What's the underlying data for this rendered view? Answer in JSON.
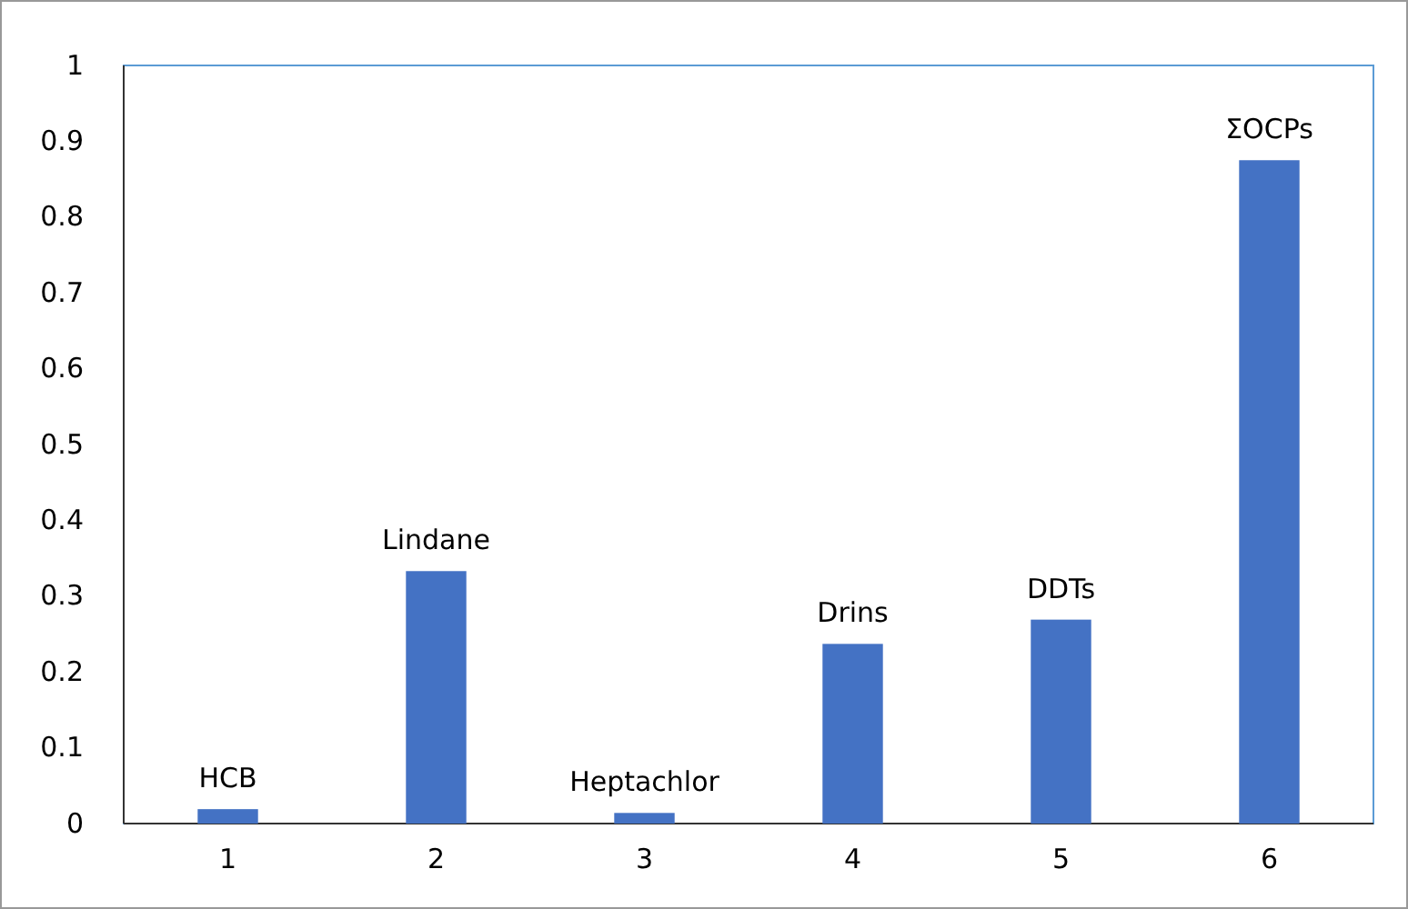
{
  "chart_data": {
    "type": "bar",
    "categories": [
      "1",
      "2",
      "3",
      "4",
      "5",
      "6"
    ],
    "values": [
      0.019,
      0.333,
      0.014,
      0.237,
      0.269,
      0.875
    ],
    "color": "#4472c4",
    "ylim": [
      0,
      1
    ],
    "yticks": [
      0,
      0.1,
      0.2,
      0.3,
      0.4,
      0.5,
      0.6,
      0.7,
      0.8,
      0.9,
      1
    ],
    "grid": false,
    "annotations": [
      {
        "text": "HCB",
        "x": "1",
        "y": 0.019
      },
      {
        "text": "Lindane",
        "x": "2",
        "y": 0.333
      },
      {
        "text": "Heptachlor",
        "x": "3",
        "y": 0.014
      },
      {
        "text": "Drins",
        "x": "4",
        "y": 0.237
      },
      {
        "text": "DDTs",
        "x": "5",
        "y": 0.269
      },
      {
        "text": "ΣOCPs",
        "x": "6",
        "y": 0.875
      }
    ]
  }
}
